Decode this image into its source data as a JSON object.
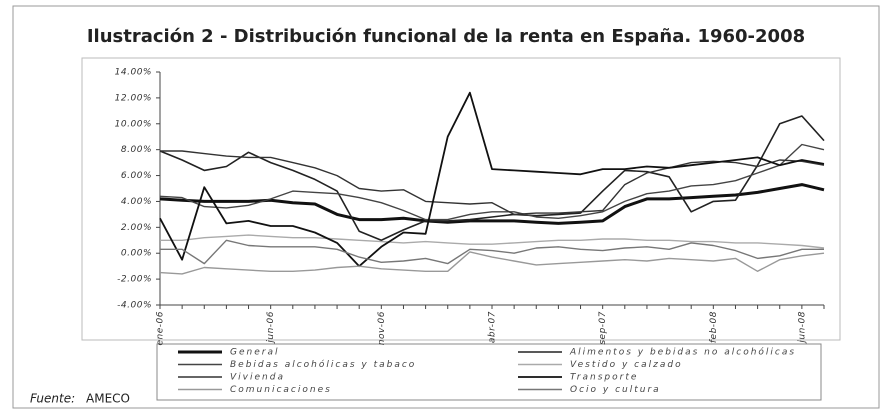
{
  "chart_data": {
    "type": "line",
    "title": "Ilustración 2 - Distribución funcional de la renta en España. 1960-2008",
    "source": {
      "label": "Fuente:",
      "text": "AMECO"
    },
    "categories": [
      "ene-06",
      null,
      null,
      null,
      null,
      "jun-06",
      null,
      null,
      null,
      null,
      "nov-06",
      null,
      null,
      null,
      null,
      "abr-07",
      null,
      null,
      null,
      null,
      "sep-07",
      null,
      null,
      null,
      null,
      "feb-08",
      null,
      null,
      null,
      "jun-08",
      null
    ],
    "ylim": [
      -4,
      14
    ],
    "yticks": [
      {
        "value": -4,
        "label": "-4.00%"
      },
      {
        "value": -2,
        "label": "-2.00%"
      },
      {
        "value": 0,
        "label": "0.00%"
      },
      {
        "value": 2,
        "label": "2.00%"
      },
      {
        "value": 4,
        "label": "4.00%"
      },
      {
        "value": 6,
        "label": "6.00%"
      },
      {
        "value": 8,
        "label": "8.00%"
      },
      {
        "value": 10,
        "label": "10.00%"
      },
      {
        "value": 12,
        "label": "12.00%"
      },
      {
        "value": 14,
        "label": "14.00%"
      }
    ],
    "series": [
      {
        "name": "General",
        "color": "#111111",
        "line_width": 3,
        "values": [
          4.2,
          4.1,
          4.0,
          4.0,
          4.0,
          4.1,
          3.9,
          3.8,
          3.0,
          2.6,
          2.6,
          2.7,
          2.5,
          2.4,
          2.5,
          2.5,
          2.5,
          2.4,
          2.3,
          2.4,
          2.5,
          3.6,
          4.2,
          4.2,
          4.3,
          4.4,
          4.5,
          4.7,
          5.0,
          5.3,
          4.9
        ]
      },
      {
        "name": "Alimentos y bebidas no alcohólicas",
        "color": "#222222",
        "line_width": 1.6,
        "values": [
          7.9,
          7.2,
          6.4,
          6.7,
          7.8,
          7.0,
          6.4,
          5.7,
          4.8,
          1.7,
          1.0,
          1.8,
          2.5,
          2.5,
          2.6,
          2.8,
          3.0,
          2.9,
          3.0,
          3.1,
          4.8,
          6.4,
          6.3,
          5.9,
          3.2,
          4.0,
          4.1,
          6.8,
          10.0,
          10.6,
          8.7
        ]
      },
      {
        "name": "Bebidas alcohólicas y tabaco",
        "color": "#444444",
        "line_width": 1.4,
        "values": [
          4.4,
          4.3,
          3.6,
          3.5,
          3.7,
          4.2,
          4.8,
          4.7,
          4.6,
          4.3,
          3.9,
          3.3,
          2.6,
          2.6,
          3.0,
          3.2,
          3.2,
          2.8,
          2.7,
          2.9,
          3.2,
          4.0,
          4.6,
          4.8,
          5.2,
          5.3,
          5.6,
          6.2,
          6.8,
          8.4,
          8.0
        ]
      },
      {
        "name": "Vestido y calzado",
        "color": "#aaaaaa",
        "line_width": 1.4,
        "values": [
          1.0,
          1.0,
          1.2,
          1.3,
          1.4,
          1.3,
          1.2,
          1.2,
          1.1,
          1.0,
          0.9,
          0.8,
          0.9,
          0.8,
          0.7,
          0.7,
          0.8,
          0.9,
          1.0,
          1.0,
          1.1,
          1.1,
          1.0,
          1.0,
          0.9,
          0.9,
          0.8,
          0.8,
          0.7,
          0.6,
          0.4
        ]
      },
      {
        "name": "Vivienda",
        "color": "#333333",
        "line_width": 1.4,
        "values": [
          7.9,
          7.9,
          7.7,
          7.5,
          7.4,
          7.4,
          7.0,
          6.6,
          6.0,
          5.0,
          4.8,
          4.9,
          4.0,
          3.9,
          3.8,
          3.9,
          3.0,
          3.1,
          3.1,
          3.2,
          3.3,
          5.3,
          6.2,
          6.6,
          7.0,
          7.1,
          7.0,
          6.7,
          7.2,
          7.1,
          6.8
        ]
      },
      {
        "name": "Transporte",
        "color": "#111111",
        "line_width": 1.8,
        "values": [
          2.7,
          -0.5,
          5.1,
          2.3,
          2.5,
          2.1,
          2.1,
          1.6,
          0.8,
          -1.0,
          0.5,
          1.6,
          1.5,
          9.0,
          12.4,
          6.5,
          6.4,
          6.3,
          6.2,
          6.1,
          6.5,
          6.5,
          6.7,
          6.6,
          6.8,
          7.0,
          7.2,
          7.4,
          6.8,
          7.2,
          6.9
        ]
      },
      {
        "name": "Comunicaciones",
        "color": "#999999",
        "line_width": 1.4,
        "values": [
          -1.5,
          -1.6,
          -1.1,
          -1.2,
          -1.3,
          -1.4,
          -1.4,
          -1.3,
          -1.1,
          -1.0,
          -1.2,
          -1.3,
          -1.4,
          -1.4,
          0.1,
          -0.3,
          -0.6,
          -0.9,
          -0.8,
          -0.7,
          -0.6,
          -0.5,
          -0.6,
          -0.4,
          -0.5,
          -0.6,
          -0.4,
          -1.4,
          -0.5,
          -0.2,
          0.0
        ]
      },
      {
        "name": "Ocio y cultura",
        "color": "#777777",
        "line_width": 1.4,
        "values": [
          0.3,
          0.3,
          -0.8,
          1.0,
          0.6,
          0.5,
          0.5,
          0.5,
          0.3,
          -0.3,
          -0.7,
          -0.6,
          -0.4,
          -0.8,
          0.3,
          0.2,
          0.0,
          0.4,
          0.5,
          0.3,
          0.2,
          0.4,
          0.5,
          0.3,
          0.8,
          0.6,
          0.2,
          -0.4,
          -0.2,
          0.3,
          0.3
        ]
      }
    ]
  }
}
